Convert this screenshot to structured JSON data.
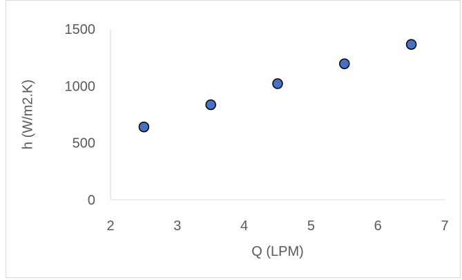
{
  "chart_data": {
    "type": "scatter",
    "title": "",
    "xlabel": "Q (LPM)",
    "ylabel": "h (W/m2.K)",
    "xlim": [
      2,
      7
    ],
    "ylim": [
      0,
      1500
    ],
    "xticks": [
      2,
      3,
      4,
      5,
      6,
      7
    ],
    "yticks": [
      0,
      500,
      1000,
      1500
    ],
    "grid": false,
    "legend": "none",
    "series": [
      {
        "x": [
          2.5,
          3.5,
          4.5,
          5.5,
          6.5
        ],
        "y": [
          640,
          835,
          1020,
          1195,
          1365
        ],
        "marker_color": "#4472c4",
        "marker_edge_color": "#000000"
      }
    ]
  }
}
